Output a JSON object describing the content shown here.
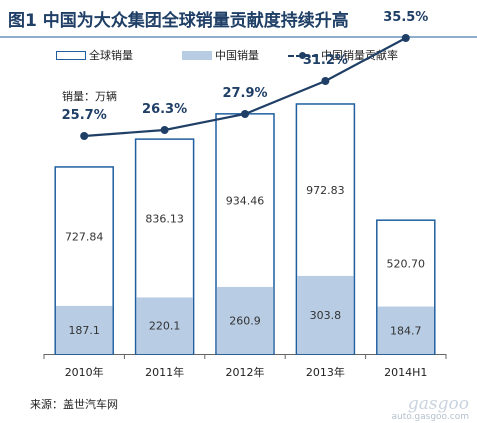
{
  "title": "图1  中国为大众集团全球销量贡献度持续升高",
  "legend": {
    "global_sales": "全球销量",
    "china_sales": "中国销量",
    "china_share": "中国销量贡献率"
  },
  "unit_label": "销量：万辆",
  "source": "来源：盖世汽车网",
  "watermark": {
    "brand": "gasgoo",
    "url": "auto.gasgoo.com"
  },
  "colors": {
    "global_outline": "#1f5fa0",
    "china_fill": "#b8cce4",
    "share_line": "#1f3f66",
    "title": "#1f3f66"
  },
  "chart_data": {
    "type": "bar",
    "categories": [
      "2010年",
      "2011年",
      "2012年",
      "2013年",
      "2014H1"
    ],
    "series": [
      {
        "name": "全球销量",
        "values": [
          727.84,
          836.13,
          934.46,
          972.83,
          520.7
        ],
        "labels": [
          "727.84",
          "836.13",
          "934.46",
          "972.83",
          "520.70"
        ]
      },
      {
        "name": "中国销量",
        "values": [
          187.1,
          220.1,
          260.9,
          303.8,
          184.7
        ],
        "labels": [
          "187.1",
          "220.1",
          "260.9",
          "303.8",
          "184.7"
        ]
      },
      {
        "name": "中国销量贡献率",
        "type": "line",
        "values": [
          25.7,
          26.3,
          27.9,
          31.2,
          35.5
        ],
        "labels": [
          "25.7%",
          "26.3%",
          "27.9%",
          "31.2%",
          "35.5%"
        ]
      }
    ],
    "ylim": [
      0,
      1000
    ],
    "y2lim": [
      0,
      40
    ],
    "grid": false,
    "legend_position": "top"
  }
}
